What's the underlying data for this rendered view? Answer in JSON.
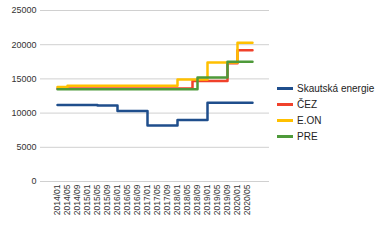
{
  "chart_data": {
    "type": "line",
    "categories": [
      "2014/01",
      null,
      "2014/05",
      null,
      "2014/09",
      null,
      "2015/01",
      null,
      "2015/05",
      null,
      "2015/09",
      null,
      "2016/01",
      null,
      "2016/05",
      null,
      "2016/09",
      null,
      "2017/01",
      null,
      "2017/05",
      null,
      "2017/09",
      null,
      "2018/01",
      null,
      "2018/05",
      null,
      "2018/09",
      null,
      "2019/01",
      null,
      "2019/05",
      null,
      "2019/09",
      null,
      "2020/01",
      null,
      "2020/05",
      null
    ],
    "series": [
      {
        "name": "Skautská energie",
        "color": "#1f4e8c",
        "values": [
          11200,
          11200,
          11200,
          11200,
          11200,
          11200,
          11200,
          11200,
          11100,
          11100,
          11100,
          11100,
          10300,
          10300,
          10300,
          10300,
          10300,
          10300,
          8200,
          8200,
          8200,
          8200,
          8200,
          8200,
          9000,
          9000,
          9000,
          9000,
          9000,
          9000,
          11500,
          11500,
          11500,
          11500,
          11500,
          11500,
          11500,
          11500,
          11500,
          11500
        ]
      },
      {
        "name": "ČEZ",
        "color": "#f0412b",
        "values": [
          13600,
          13600,
          13600,
          13600,
          13600,
          13600,
          13600,
          13600,
          13600,
          13600,
          13600,
          13600,
          13600,
          13600,
          13600,
          13600,
          13600,
          13600,
          13600,
          13600,
          13600,
          13600,
          13600,
          13600,
          13600,
          13600,
          13600,
          14700,
          14700,
          14700,
          14700,
          14700,
          14700,
          14700,
          17300,
          17300,
          19200,
          19200,
          19200,
          19200
        ]
      },
      {
        "name": "E.ON",
        "color": "#ffc000",
        "values": [
          13800,
          13800,
          14000,
          14000,
          14000,
          14000,
          14000,
          14000,
          14000,
          14000,
          14000,
          14000,
          14000,
          14000,
          14000,
          14000,
          14000,
          14000,
          14000,
          14000,
          14000,
          14000,
          14000,
          14000,
          14900,
          14900,
          14900,
          14900,
          14900,
          14900,
          17400,
          17400,
          17400,
          17400,
          17400,
          17400,
          20300,
          20300,
          20300,
          20300
        ]
      },
      {
        "name": "PRE",
        "color": "#4e9a3a",
        "values": [
          13500,
          13500,
          13500,
          13500,
          13500,
          13500,
          13500,
          13500,
          13500,
          13500,
          13500,
          13500,
          13500,
          13500,
          13500,
          13500,
          13500,
          13500,
          13500,
          13500,
          13500,
          13500,
          13500,
          13500,
          13500,
          13500,
          13500,
          13500,
          15200,
          15200,
          15200,
          15200,
          15200,
          15200,
          17500,
          17500,
          17500,
          17500,
          17500,
          17500
        ]
      }
    ],
    "ylim": [
      0,
      25000
    ],
    "yticks": [
      0,
      5000,
      10000,
      15000,
      20000,
      25000
    ],
    "grid": true,
    "legend": "right"
  }
}
